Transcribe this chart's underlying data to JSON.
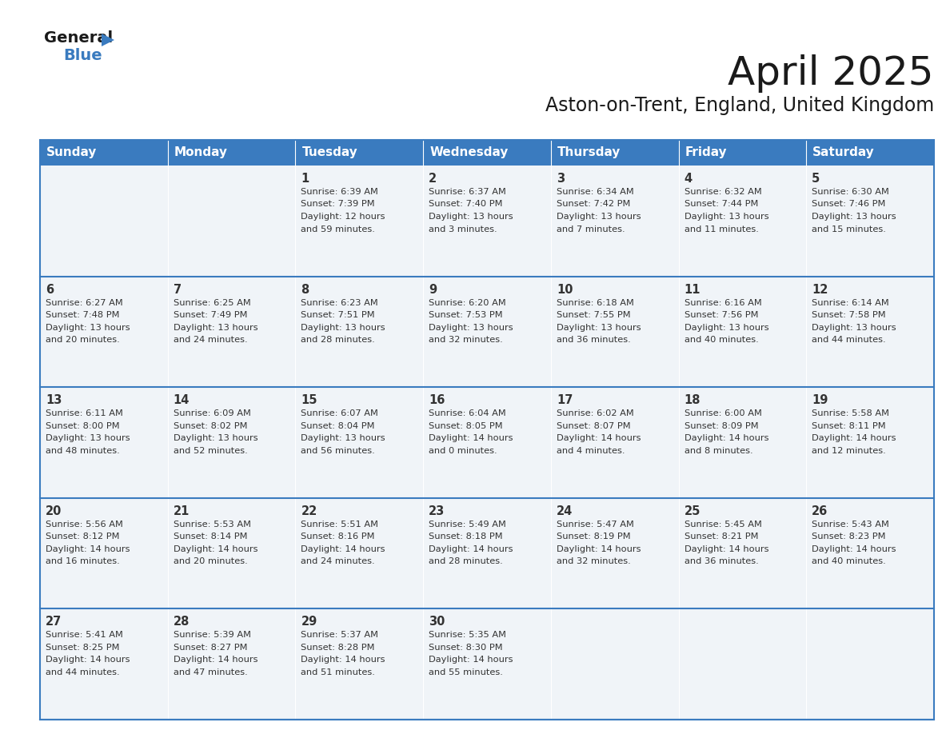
{
  "title": "April 2025",
  "subtitle": "Aston-on-Trent, England, United Kingdom",
  "header_bg": "#3a7bbf",
  "header_text_color": "#ffffff",
  "cell_bg": "#f0f4f8",
  "row_line_color": "#3a7bbf",
  "text_color": "#333333",
  "days_of_week": [
    "Sunday",
    "Monday",
    "Tuesday",
    "Wednesday",
    "Thursday",
    "Friday",
    "Saturday"
  ],
  "weeks": [
    [
      {
        "day": "",
        "sunrise": "",
        "sunset": "",
        "daylight": ""
      },
      {
        "day": "",
        "sunrise": "",
        "sunset": "",
        "daylight": ""
      },
      {
        "day": "1",
        "sunrise": "6:39 AM",
        "sunset": "7:39 PM",
        "daylight": "12 hours\nand 59 minutes."
      },
      {
        "day": "2",
        "sunrise": "6:37 AM",
        "sunset": "7:40 PM",
        "daylight": "13 hours\nand 3 minutes."
      },
      {
        "day": "3",
        "sunrise": "6:34 AM",
        "sunset": "7:42 PM",
        "daylight": "13 hours\nand 7 minutes."
      },
      {
        "day": "4",
        "sunrise": "6:32 AM",
        "sunset": "7:44 PM",
        "daylight": "13 hours\nand 11 minutes."
      },
      {
        "day": "5",
        "sunrise": "6:30 AM",
        "sunset": "7:46 PM",
        "daylight": "13 hours\nand 15 minutes."
      }
    ],
    [
      {
        "day": "6",
        "sunrise": "6:27 AM",
        "sunset": "7:48 PM",
        "daylight": "13 hours\nand 20 minutes."
      },
      {
        "day": "7",
        "sunrise": "6:25 AM",
        "sunset": "7:49 PM",
        "daylight": "13 hours\nand 24 minutes."
      },
      {
        "day": "8",
        "sunrise": "6:23 AM",
        "sunset": "7:51 PM",
        "daylight": "13 hours\nand 28 minutes."
      },
      {
        "day": "9",
        "sunrise": "6:20 AM",
        "sunset": "7:53 PM",
        "daylight": "13 hours\nand 32 minutes."
      },
      {
        "day": "10",
        "sunrise": "6:18 AM",
        "sunset": "7:55 PM",
        "daylight": "13 hours\nand 36 minutes."
      },
      {
        "day": "11",
        "sunrise": "6:16 AM",
        "sunset": "7:56 PM",
        "daylight": "13 hours\nand 40 minutes."
      },
      {
        "day": "12",
        "sunrise": "6:14 AM",
        "sunset": "7:58 PM",
        "daylight": "13 hours\nand 44 minutes."
      }
    ],
    [
      {
        "day": "13",
        "sunrise": "6:11 AM",
        "sunset": "8:00 PM",
        "daylight": "13 hours\nand 48 minutes."
      },
      {
        "day": "14",
        "sunrise": "6:09 AM",
        "sunset": "8:02 PM",
        "daylight": "13 hours\nand 52 minutes."
      },
      {
        "day": "15",
        "sunrise": "6:07 AM",
        "sunset": "8:04 PM",
        "daylight": "13 hours\nand 56 minutes."
      },
      {
        "day": "16",
        "sunrise": "6:04 AM",
        "sunset": "8:05 PM",
        "daylight": "14 hours\nand 0 minutes."
      },
      {
        "day": "17",
        "sunrise": "6:02 AM",
        "sunset": "8:07 PM",
        "daylight": "14 hours\nand 4 minutes."
      },
      {
        "day": "18",
        "sunrise": "6:00 AM",
        "sunset": "8:09 PM",
        "daylight": "14 hours\nand 8 minutes."
      },
      {
        "day": "19",
        "sunrise": "5:58 AM",
        "sunset": "8:11 PM",
        "daylight": "14 hours\nand 12 minutes."
      }
    ],
    [
      {
        "day": "20",
        "sunrise": "5:56 AM",
        "sunset": "8:12 PM",
        "daylight": "14 hours\nand 16 minutes."
      },
      {
        "day": "21",
        "sunrise": "5:53 AM",
        "sunset": "8:14 PM",
        "daylight": "14 hours\nand 20 minutes."
      },
      {
        "day": "22",
        "sunrise": "5:51 AM",
        "sunset": "8:16 PM",
        "daylight": "14 hours\nand 24 minutes."
      },
      {
        "day": "23",
        "sunrise": "5:49 AM",
        "sunset": "8:18 PM",
        "daylight": "14 hours\nand 28 minutes."
      },
      {
        "day": "24",
        "sunrise": "5:47 AM",
        "sunset": "8:19 PM",
        "daylight": "14 hours\nand 32 minutes."
      },
      {
        "day": "25",
        "sunrise": "5:45 AM",
        "sunset": "8:21 PM",
        "daylight": "14 hours\nand 36 minutes."
      },
      {
        "day": "26",
        "sunrise": "5:43 AM",
        "sunset": "8:23 PM",
        "daylight": "14 hours\nand 40 minutes."
      }
    ],
    [
      {
        "day": "27",
        "sunrise": "5:41 AM",
        "sunset": "8:25 PM",
        "daylight": "14 hours\nand 44 minutes."
      },
      {
        "day": "28",
        "sunrise": "5:39 AM",
        "sunset": "8:27 PM",
        "daylight": "14 hours\nand 47 minutes."
      },
      {
        "day": "29",
        "sunrise": "5:37 AM",
        "sunset": "8:28 PM",
        "daylight": "14 hours\nand 51 minutes."
      },
      {
        "day": "30",
        "sunrise": "5:35 AM",
        "sunset": "8:30 PM",
        "daylight": "14 hours\nand 55 minutes."
      },
      {
        "day": "",
        "sunrise": "",
        "sunset": "",
        "daylight": ""
      },
      {
        "day": "",
        "sunrise": "",
        "sunset": "",
        "daylight": ""
      },
      {
        "day": "",
        "sunrise": "",
        "sunset": "",
        "daylight": ""
      }
    ]
  ]
}
